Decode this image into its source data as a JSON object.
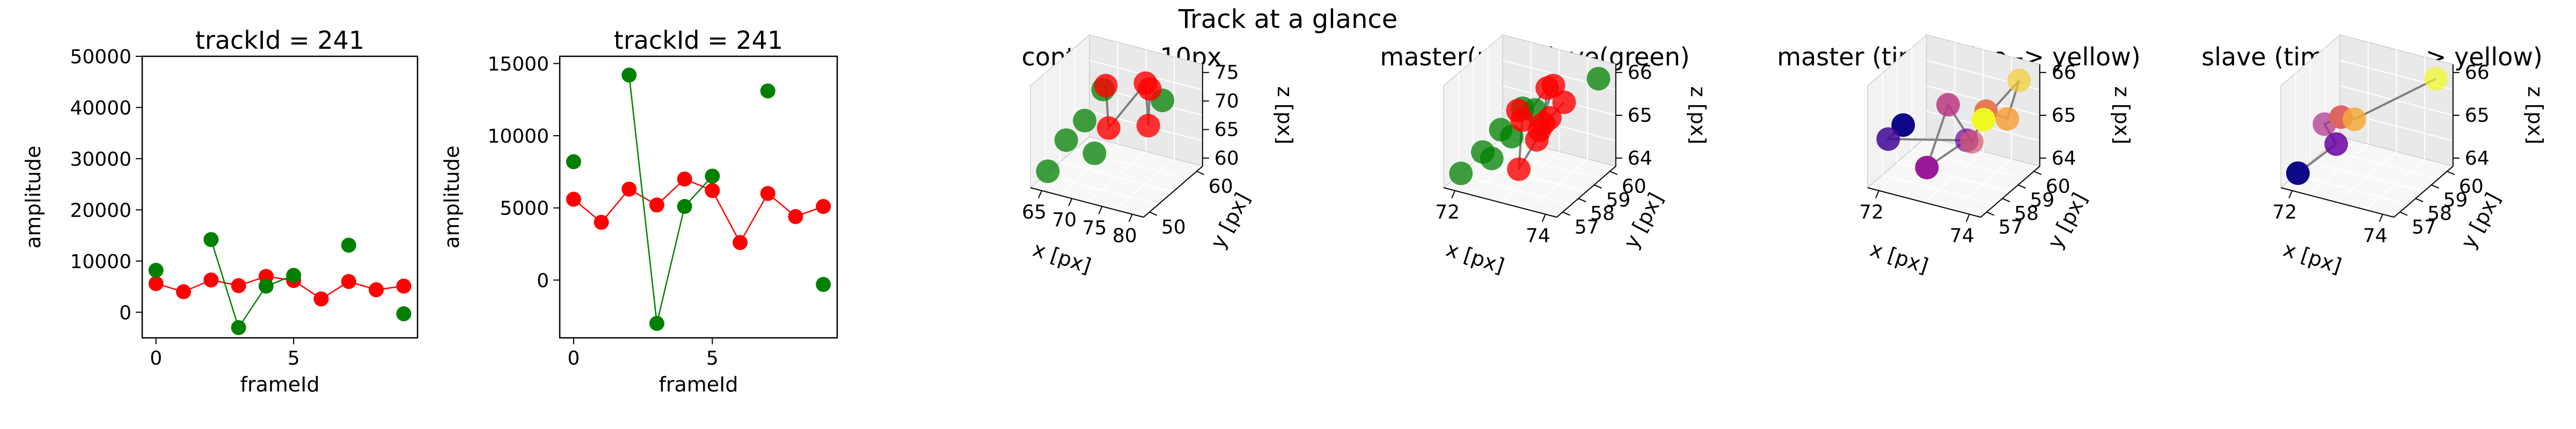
{
  "suptitle": "Track at a glance",
  "colors": {
    "master": "#ff0000",
    "slave": "#008000",
    "ink": "#000000",
    "path": "#808080"
  },
  "chart_data": [
    {
      "type": "line",
      "title": "trackId = 241",
      "xlabel": "frameId",
      "ylabel": "amplitude",
      "xlim": [
        -0.5,
        9.5
      ],
      "ylim": [
        -5000,
        50000
      ],
      "xticks": [
        0,
        5
      ],
      "yticks": [
        0,
        10000,
        20000,
        30000,
        40000,
        50000
      ],
      "x": [
        0,
        1,
        2,
        3,
        4,
        5,
        6,
        7,
        8,
        9
      ],
      "series": [
        {
          "name": "",
          "color": "#ff0000",
          "values": [
            5600,
            4000,
            6300,
            5200,
            7000,
            6200,
            2600,
            6000,
            4400,
            5100
          ]
        },
        {
          "name": "",
          "color": "#008000",
          "values": [
            8200,
            null,
            14200,
            -3000,
            5100,
            7200,
            null,
            13100,
            null,
            -300
          ]
        }
      ]
    },
    {
      "type": "line",
      "title": "trackId = 241",
      "xlabel": "frameId",
      "ylabel": "amplitude",
      "xlim": [
        -0.5,
        9.5
      ],
      "ylim": [
        -4000,
        15500
      ],
      "xticks": [
        0,
        5
      ],
      "yticks": [
        0,
        5000,
        10000,
        15000
      ],
      "x": [
        0,
        1,
        2,
        3,
        4,
        5,
        6,
        7,
        8,
        9
      ],
      "series": [
        {
          "name": "",
          "color": "#ff0000",
          "values": [
            5600,
            4000,
            6300,
            5200,
            7000,
            6200,
            2600,
            6000,
            4400,
            5100
          ]
        },
        {
          "name": "",
          "color": "#008000",
          "values": [
            8200,
            null,
            14200,
            -3000,
            5100,
            7200,
            null,
            13100,
            null,
            -300
          ]
        }
      ]
    },
    {
      "type": "scatter",
      "projection": "3d",
      "title": "context +- 10px",
      "xlabel": "x [px]",
      "ylabel": "y [px]",
      "zlabel": "z [px]",
      "xticks": [
        "65",
        "70",
        "75",
        "80"
      ],
      "yticks": [
        "50",
        "60"
      ],
      "zticks": [
        "60",
        "65",
        "70",
        "75"
      ],
      "master": [
        [
          74,
          58.5,
          65.5
        ],
        [
          75,
          58,
          65.0
        ],
        [
          76,
          59,
          65.5
        ],
        [
          77,
          58.5,
          65.0
        ],
        [
          75.5,
          59.5,
          65.2
        ]
      ],
      "slave": [
        [
          71.5,
          57.5,
          64.2
        ],
        [
          72.5,
          58.5,
          64.8
        ],
        [
          73,
          59,
          65.2
        ],
        [
          74,
          58,
          64.5
        ],
        [
          78,
          58.5,
          65.5
        ],
        [
          72,
          58,
          64.6
        ]
      ]
    },
    {
      "type": "scatter",
      "projection": "3d",
      "title": "master(red) slave(green)",
      "xlabel": "x [px]",
      "ylabel": "y [px]",
      "zlabel": "z [px]",
      "xticks": [
        "72",
        "74"
      ],
      "yticks": [
        "57",
        "58",
        "59",
        "60"
      ],
      "zticks": [
        "64",
        "65",
        "66"
      ],
      "master": [
        [
          73.5,
          58.0,
          65.6
        ],
        [
          74.2,
          58.5,
          65.0
        ],
        [
          74.5,
          59.0,
          66.0
        ],
        [
          73.8,
          58.8,
          64.6
        ],
        [
          74.6,
          58.3,
          65.3
        ],
        [
          74.0,
          59.2,
          65.8
        ],
        [
          73.2,
          58.6,
          65.1
        ],
        [
          73.9,
          57.6,
          64.3
        ],
        [
          74.4,
          58.9,
          65.2
        ],
        [
          74.8,
          59.3,
          65.5
        ]
      ],
      "slave": [
        [
          71.2,
          57.2,
          64.0
        ],
        [
          72.0,
          57.6,
          64.5
        ],
        [
          72.6,
          58.0,
          65.0
        ],
        [
          73.4,
          58.4,
          65.5
        ],
        [
          73.0,
          58.2,
          64.8
        ],
        [
          72.3,
          57.8,
          64.3
        ],
        [
          73.6,
          58.9,
          65.3
        ],
        [
          76.0,
          60.0,
          66.0
        ]
      ]
    },
    {
      "type": "scatter",
      "projection": "3d",
      "title": "master (time: blue -> yellow)",
      "xlabel": "x [px]",
      "ylabel": "y [px]",
      "zlabel": "z [px]",
      "xticks": [
        "72",
        "74"
      ],
      "yticks": [
        "57",
        "58",
        "59",
        "60"
      ],
      "zticks": [
        "64",
        "65",
        "66"
      ],
      "points": [
        [
          72.4,
          57.8,
          65.4
        ],
        [
          72.2,
          57.6,
          65.2
        ],
        [
          73.5,
          58.3,
          65.1
        ],
        [
          72.8,
          58.0,
          64.6
        ],
        [
          73.0,
          58.4,
          65.6
        ],
        [
          73.4,
          58.6,
          64.9
        ],
        [
          73.8,
          58.5,
          65.6
        ],
        [
          74.0,
          58.9,
          65.3
        ],
        [
          74.2,
          59.0,
          66.0
        ],
        [
          73.6,
          58.7,
          65.3
        ]
      ]
    },
    {
      "type": "scatter",
      "projection": "3d",
      "title": "slave (time: blue -> yellow)",
      "xlabel": "x [px]",
      "ylabel": "y [px]",
      "zlabel": "z [px]",
      "xticks": [
        "72",
        "74"
      ],
      "yticks": [
        "57",
        "58",
        "59",
        "60"
      ],
      "zticks": [
        "64",
        "65",
        "66"
      ],
      "points": [
        [
          71.4,
          57.3,
          64.1
        ],
        [
          72.9,
          58.1,
          64.7
        ],
        [
          72.4,
          57.9,
          65.2
        ],
        [
          73.0,
          58.3,
          65.3
        ],
        [
          73.5,
          58.6,
          65.2
        ],
        [
          76.8,
          60.2,
          66.0
        ]
      ]
    }
  ]
}
